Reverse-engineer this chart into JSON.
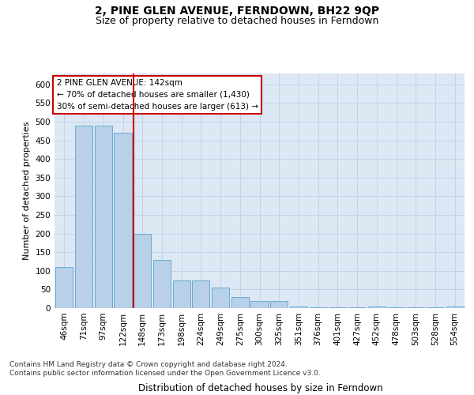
{
  "title": "2, PINE GLEN AVENUE, FERNDOWN, BH22 9QP",
  "subtitle": "Size of property relative to detached houses in Ferndown",
  "xlabel": "Distribution of detached houses by size in Ferndown",
  "ylabel": "Number of detached properties",
  "categories": [
    "46sqm",
    "71sqm",
    "97sqm",
    "122sqm",
    "148sqm",
    "173sqm",
    "198sqm",
    "224sqm",
    "249sqm",
    "275sqm",
    "300sqm",
    "325sqm",
    "351sqm",
    "376sqm",
    "401sqm",
    "427sqm",
    "452sqm",
    "478sqm",
    "503sqm",
    "528sqm",
    "554sqm"
  ],
  "values": [
    110,
    490,
    490,
    470,
    200,
    130,
    75,
    75,
    55,
    30,
    20,
    20,
    5,
    2,
    2,
    2,
    5,
    2,
    2,
    2,
    5
  ],
  "bar_color": "#b8d0e8",
  "bar_edge_color": "#6aaad4",
  "grid_color": "#c0d4e8",
  "background_color": "#dde8f4",
  "vline_color": "#cc0000",
  "annotation_text": "2 PINE GLEN AVENUE: 142sqm\n← 70% of detached houses are smaller (1,430)\n30% of semi-detached houses are larger (613) →",
  "annotation_box_color": "#ffffff",
  "annotation_box_edge_color": "#cc0000",
  "footer_text": "Contains HM Land Registry data © Crown copyright and database right 2024.\nContains public sector information licensed under the Open Government Licence v3.0.",
  "ylim": [
    0,
    630
  ],
  "yticks": [
    0,
    50,
    100,
    150,
    200,
    250,
    300,
    350,
    400,
    450,
    500,
    550,
    600
  ],
  "title_fontsize": 10,
  "subtitle_fontsize": 9,
  "xlabel_fontsize": 8.5,
  "ylabel_fontsize": 8,
  "tick_fontsize": 7.5,
  "annotation_fontsize": 7.5,
  "footer_fontsize": 6.5
}
